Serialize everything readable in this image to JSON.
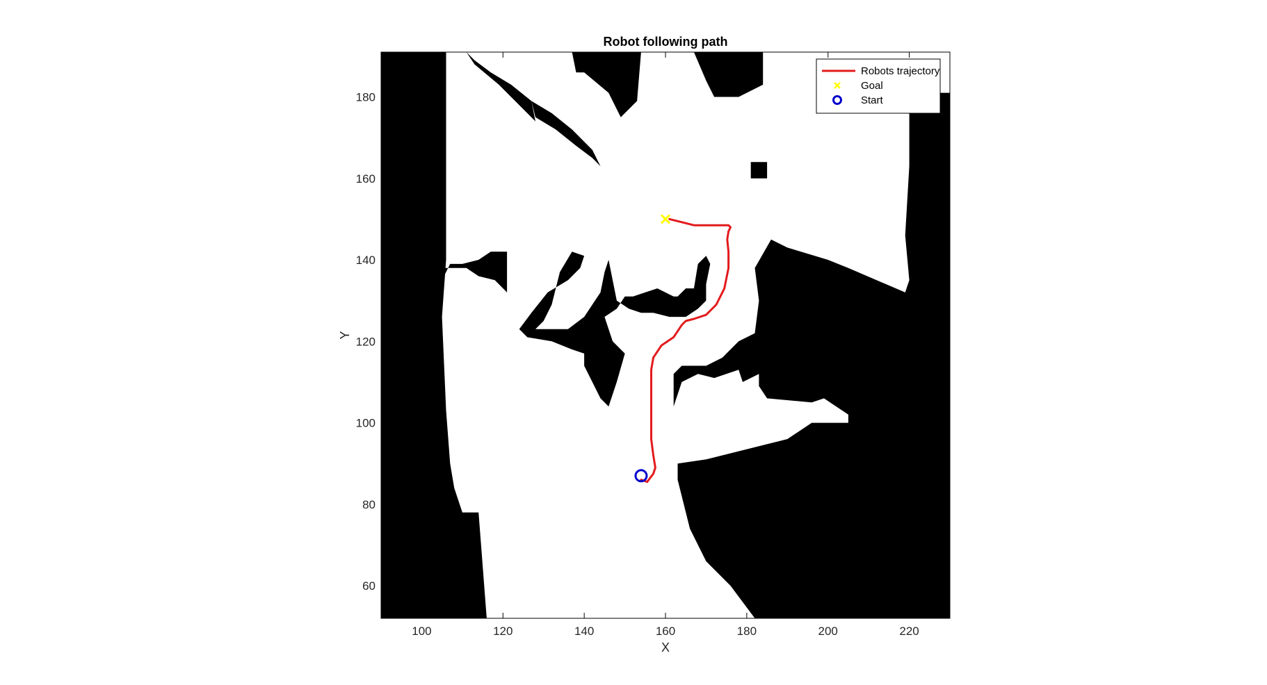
{
  "chart_data": {
    "type": "scatter",
    "title": "Robot following path",
    "xlabel": "X",
    "ylabel": "Y",
    "xlim": [
      90,
      230
    ],
    "ylim": [
      52,
      191
    ],
    "xticks": [
      100,
      120,
      140,
      160,
      180,
      200,
      220
    ],
    "yticks": [
      60,
      80,
      100,
      120,
      140,
      160,
      180
    ],
    "grid": false,
    "legend_location": "top-right",
    "background": "occupancy map (black = occupied, white = free)",
    "colors": {
      "trajectory": "#e31a1c",
      "goal": "#ffff00",
      "start": "#0000cc",
      "occupied": "#000000",
      "free": "#ffffff"
    },
    "legend": [
      {
        "label": "Robots trajectory",
        "kind": "line"
      },
      {
        "label": "Goal",
        "kind": "x-marker"
      },
      {
        "label": "Start",
        "kind": "o-marker"
      }
    ],
    "series": [
      {
        "name": "Robots trajectory",
        "x": [
          154,
          155.5,
          157,
          157.5,
          157,
          156.5,
          156.5,
          156.5,
          156.5,
          157,
          159,
          162,
          164,
          165,
          167,
          170,
          172.5,
          174.5,
          175.5,
          175.5,
          175.2,
          175.5,
          176,
          175.5,
          173.5,
          170.5,
          167,
          163,
          161
        ],
        "y": [
          86,
          85.5,
          87.5,
          89,
          92,
          96,
          102,
          108,
          113,
          116,
          119,
          121,
          124,
          125,
          125.5,
          126.5,
          129,
          133,
          138,
          142,
          145,
          147,
          148,
          148.5,
          148.5,
          148.5,
          148.5,
          149.5,
          150
        ]
      },
      {
        "name": "Goal",
        "x": [
          160
        ],
        "y": [
          150
        ]
      },
      {
        "name": "Start",
        "x": [
          154
        ],
        "y": [
          87
        ]
      }
    ],
    "occupied_regions": [
      [
        [
          90,
          191
        ],
        [
          106,
          191
        ],
        [
          106,
          140
        ],
        [
          105,
          126
        ],
        [
          106,
          103
        ],
        [
          107,
          90
        ],
        [
          108,
          84
        ],
        [
          110,
          78
        ],
        [
          114,
          78
        ],
        [
          116,
          52
        ],
        [
          90,
          52
        ]
      ],
      [
        [
          137,
          191
        ],
        [
          154,
          191
        ],
        [
          153,
          179
        ],
        [
          149,
          175
        ],
        [
          146,
          181
        ],
        [
          140,
          186
        ],
        [
          138,
          186
        ]
      ],
      [
        [
          167,
          191
        ],
        [
          184,
          191
        ],
        [
          184,
          183
        ],
        [
          178,
          180
        ],
        [
          172,
          180
        ],
        [
          170,
          184
        ]
      ],
      [
        [
          195,
          191
        ],
        [
          230,
          191
        ],
        [
          230,
          52
        ],
        [
          182,
          52
        ],
        [
          176,
          60
        ],
        [
          170,
          66
        ],
        [
          166,
          74
        ],
        [
          163,
          86
        ],
        [
          163,
          90
        ],
        [
          170,
          91
        ],
        [
          190,
          96
        ],
        [
          196,
          100
        ],
        [
          205,
          100
        ],
        [
          205,
          102
        ],
        [
          199,
          106
        ],
        [
          196,
          105
        ],
        [
          185,
          106
        ],
        [
          183,
          109
        ],
        [
          183,
          112
        ],
        [
          179,
          110
        ],
        [
          178,
          113
        ],
        [
          172,
          111
        ],
        [
          168,
          112
        ],
        [
          164,
          110
        ],
        [
          162,
          104
        ],
        [
          162,
          112
        ],
        [
          164,
          114
        ],
        [
          170,
          114
        ],
        [
          174,
          116
        ],
        [
          178,
          120
        ],
        [
          182,
          122
        ],
        [
          183,
          130
        ],
        [
          182,
          138
        ],
        [
          186,
          145
        ],
        [
          190,
          143
        ],
        [
          200,
          140
        ],
        [
          205,
          138
        ],
        [
          219,
          132
        ],
        [
          220,
          135
        ],
        [
          219,
          146
        ],
        [
          220,
          163
        ],
        [
          220,
          181
        ],
        [
          230,
          181
        ],
        [
          230,
          191
        ]
      ],
      [
        [
          214,
          186
        ],
        [
          219,
          186
        ],
        [
          219,
          181
        ],
        [
          214,
          181
        ]
      ],
      [
        [
          105,
          138
        ],
        [
          111,
          138
        ],
        [
          114,
          136
        ],
        [
          118,
          135
        ],
        [
          121,
          132
        ],
        [
          121,
          142
        ],
        [
          117,
          142
        ],
        [
          114,
          140
        ],
        [
          110,
          139
        ],
        [
          107,
          139
        ],
        [
          105,
          135
        ]
      ],
      [
        [
          136,
          123
        ],
        [
          140,
          126
        ],
        [
          144,
          132
        ],
        [
          145,
          137
        ],
        [
          146,
          140
        ],
        [
          148,
          130
        ],
        [
          151,
          128
        ],
        [
          154,
          127
        ],
        [
          157,
          127
        ],
        [
          161,
          126
        ],
        [
          165,
          126
        ],
        [
          168,
          128
        ],
        [
          170,
          130
        ],
        [
          170,
          134
        ],
        [
          171,
          139
        ],
        [
          170,
          141
        ],
        [
          168,
          139
        ],
        [
          167,
          133
        ],
        [
          165,
          133
        ],
        [
          163,
          131
        ],
        [
          162,
          131
        ],
        [
          158,
          133
        ],
        [
          155,
          132
        ],
        [
          152,
          131
        ],
        [
          150,
          131
        ],
        [
          148,
          128
        ],
        [
          145,
          126
        ],
        [
          147,
          120
        ],
        [
          150,
          117
        ],
        [
          148,
          110
        ],
        [
          146,
          104
        ],
        [
          144,
          106
        ],
        [
          140,
          114
        ],
        [
          140,
          117
        ],
        [
          137,
          118
        ],
        [
          132,
          120
        ],
        [
          126,
          121
        ],
        [
          124,
          123
        ],
        [
          127,
          127
        ],
        [
          131,
          132
        ],
        [
          136,
          135
        ],
        [
          139,
          138
        ],
        [
          140,
          141
        ],
        [
          137,
          142
        ],
        [
          134,
          137
        ],
        [
          132,
          129
        ],
        [
          130,
          125
        ],
        [
          128,
          123
        ]
      ],
      [
        [
          111,
          191
        ],
        [
          113,
          188
        ],
        [
          119,
          183
        ],
        [
          125,
          177
        ],
        [
          128,
          174
        ],
        [
          127,
          179
        ],
        [
          122,
          183
        ],
        [
          117,
          186
        ],
        [
          113,
          189
        ]
      ],
      [
        [
          127,
          179
        ],
        [
          132,
          176
        ],
        [
          137,
          172
        ],
        [
          142,
          167
        ],
        [
          144,
          163
        ],
        [
          142,
          165
        ],
        [
          138,
          168
        ],
        [
          133,
          172
        ],
        [
          128,
          175
        ]
      ],
      [
        [
          181,
          160
        ],
        [
          185,
          160
        ],
        [
          185,
          164
        ],
        [
          181,
          164
        ]
      ]
    ]
  }
}
